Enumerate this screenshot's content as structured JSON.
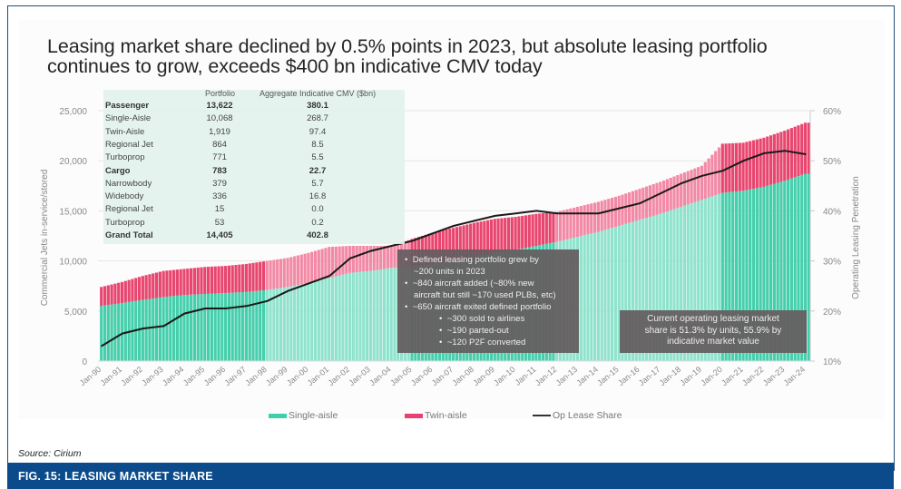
{
  "title": "Leasing market share declined by 0.5% points in 2023, but absolute leasing portfolio continues to grow, exceeds $400 bn indicative CMV today",
  "source": "Source: Cirium",
  "figure_caption": "FIG. 15: LEASING MARKET SHARE",
  "colors": {
    "single_aisle": "#3fcfab",
    "twin_aisle": "#e8416f",
    "op_lease_share": "#1a1a1a",
    "figure_bar": "#0b4b8c",
    "annotation_box": "#645c5f"
  },
  "table": {
    "headers": [
      "",
      "Portfolio",
      "Aggregate Indicative CMV ($bn)"
    ],
    "rows": [
      {
        "label": "Passenger",
        "portfolio": "13,622",
        "cmv": "380.1",
        "bold": true
      },
      {
        "label": "Single-Aisle",
        "portfolio": "10,068",
        "cmv": "268.7",
        "bold": false
      },
      {
        "label": "Twin-Aisle",
        "portfolio": "1,919",
        "cmv": "97.4",
        "bold": false
      },
      {
        "label": "Regional Jet",
        "portfolio": "864",
        "cmv": "8.5",
        "bold": false
      },
      {
        "label": "Turboprop",
        "portfolio": "771",
        "cmv": "5.5",
        "bold": false
      },
      {
        "label": "Cargo",
        "portfolio": "783",
        "cmv": "22.7",
        "bold": true
      },
      {
        "label": "Narrowbody",
        "portfolio": "379",
        "cmv": "5.7",
        "bold": false
      },
      {
        "label": "Widebody",
        "portfolio": "336",
        "cmv": "16.8",
        "bold": false
      },
      {
        "label": "Regional Jet",
        "portfolio": "15",
        "cmv": "0.0",
        "bold": false
      },
      {
        "label": "Turboprop",
        "portfolio": "53",
        "cmv": "0.2",
        "bold": false
      },
      {
        "label": "Grand Total",
        "portfolio": "14,405",
        "cmv": "402.8",
        "bold": true
      }
    ]
  },
  "annotations": {
    "note1": [
      {
        "level": 1,
        "text": "Defined leasing portfolio grew by"
      },
      {
        "level": 1,
        "text": "~200 units in 2023",
        "cont": true
      },
      {
        "level": 1,
        "text": "~840 aircraft added (~80% new"
      },
      {
        "level": 1,
        "text": "aircraft but still ~170 used PLBs, etc)",
        "cont": true
      },
      {
        "level": 1,
        "text": "~650 aircraft exited defined portfolio"
      },
      {
        "level": 2,
        "text": "~300 sold to airlines"
      },
      {
        "level": 2,
        "text": "~190 parted-out"
      },
      {
        "level": 2,
        "text": "~120 P2F converted"
      }
    ],
    "note2": [
      "Current operating leasing market",
      "share is 51.3% by units, 55.9% by",
      "indicative market value"
    ]
  },
  "chart_data": {
    "type": "bar",
    "stacked": true,
    "title": "Leasing market share declined by 0.5% points in 2023, but absolute leasing portfolio continues to grow, exceeds $400 bn indicative CMV today",
    "xlabel": "",
    "ylabel": "Commercial Jets in-service/stored",
    "y2label": "Operating Leasing Penetration",
    "ylim": [
      0,
      25000
    ],
    "y2lim": [
      0.1,
      0.6
    ],
    "yticks": [
      "0",
      "5,000",
      "10,000",
      "15,000",
      "20,000",
      "25,000"
    ],
    "y2ticks": [
      "10%",
      "20%",
      "30%",
      "40%",
      "50%",
      "60%"
    ],
    "grid": true,
    "legend_position": "bottom",
    "categories": [
      "Jan-90",
      "Jan-91",
      "Jan-92",
      "Jan-93",
      "Jan-94",
      "Jan-95",
      "Jan-96",
      "Jan-97",
      "Jan-98",
      "Jan-99",
      "Jan-00",
      "Jan-01",
      "Jan-02",
      "Jan-03",
      "Jan-04",
      "Jan-05",
      "Jan-06",
      "Jan-07",
      "Jan-08",
      "Jan-09",
      "Jan-10",
      "Jan-11",
      "Jan-12",
      "Jan-13",
      "Jan-14",
      "Jan-15",
      "Jan-16",
      "Jan-17",
      "Jan-18",
      "Jan-19",
      "Jan-20",
      "Jan-21",
      "Jan-22",
      "Jan-23",
      "Jan-24"
    ],
    "series": [
      {
        "name": "Single-aisle",
        "kind": "bar",
        "axis": "left",
        "values": [
          5500,
          5800,
          6100,
          6400,
          6600,
          6700,
          6800,
          6900,
          7100,
          7400,
          7800,
          8300,
          8800,
          9000,
          9300,
          9400,
          9700,
          10000,
          10400,
          10800,
          11100,
          11500,
          11900,
          12400,
          12900,
          13500,
          14100,
          14700,
          15400,
          16100,
          16800,
          17000,
          17400,
          18000,
          18700
        ]
      },
      {
        "name": "Twin-aisle",
        "kind": "bar",
        "axis": "left",
        "values": [
          1900,
          2100,
          2400,
          2600,
          2600,
          2700,
          2700,
          2800,
          2900,
          2900,
          3000,
          3100,
          2700,
          2500,
          2200,
          2800,
          3100,
          3300,
          3400,
          3400,
          3300,
          3200,
          3000,
          3000,
          3000,
          3000,
          3100,
          3200,
          3300,
          3400,
          4900,
          4800,
          4900,
          5000,
          5100
        ]
      },
      {
        "name": "Op Lease Share",
        "kind": "line",
        "axis": "right",
        "values": [
          0.13,
          0.155,
          0.165,
          0.17,
          0.195,
          0.205,
          0.205,
          0.21,
          0.22,
          0.24,
          0.255,
          0.27,
          0.305,
          0.32,
          0.33,
          0.34,
          0.355,
          0.37,
          0.38,
          0.39,
          0.395,
          0.4,
          0.395,
          0.395,
          0.395,
          0.405,
          0.415,
          0.435,
          0.455,
          0.47,
          0.48,
          0.5,
          0.515,
          0.52,
          0.513
        ]
      }
    ]
  },
  "legend": [
    {
      "label": "Single-aisle",
      "type": "bar-swatch"
    },
    {
      "label": "Twin-aisle",
      "type": "bar-swatch"
    },
    {
      "label": "Op Lease Share",
      "type": "line-swatch"
    }
  ]
}
